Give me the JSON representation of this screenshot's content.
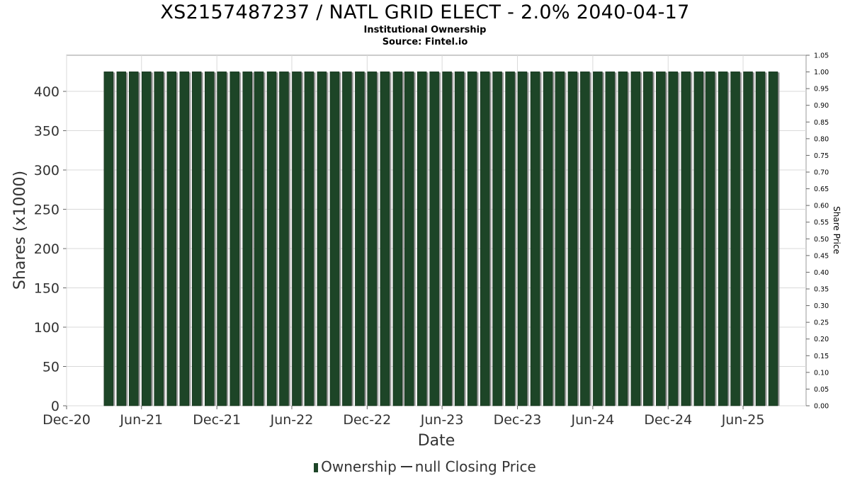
{
  "title": "XS2157487237 / NATL GRID ELECT - 2.0% 2040-04-17",
  "subtitle_1": "Institutional Ownership",
  "subtitle_2": "Source: Fintel.io",
  "legend": {
    "series_1": "Ownership",
    "series_2": "null Closing Price"
  },
  "colors": {
    "bar": "#1d4527",
    "bar_shadow": "#9a9a9a",
    "grid": "#d9d9d9",
    "axis_text": "#333333"
  },
  "chart_data": {
    "type": "bar",
    "xlabel": "Date",
    "ylabel": "Shares (x1000)",
    "y2label": "Share Price",
    "xlim": [
      "2020-12-01",
      "2025-11-01"
    ],
    "ylim": [
      0,
      446
    ],
    "y2lim": [
      0,
      1.05
    ],
    "x_ticks": [
      "Dec-20",
      "Jun-21",
      "Dec-21",
      "Jun-22",
      "Dec-22",
      "Jun-23",
      "Dec-23",
      "Jun-24",
      "Dec-24",
      "Jun-25"
    ],
    "y_ticks": [
      0,
      50,
      100,
      150,
      200,
      250,
      300,
      350,
      400
    ],
    "y2_ticks": [
      "0.00",
      "0.05",
      "0.10",
      "0.15",
      "0.20",
      "0.25",
      "0.30",
      "0.35",
      "0.40",
      "0.45",
      "0.50",
      "0.55",
      "0.60",
      "0.65",
      "0.70",
      "0.75",
      "0.80",
      "0.85",
      "0.90",
      "0.95",
      "1.00",
      "1.05"
    ],
    "grid": true,
    "legend_position": "bottom",
    "series": [
      {
        "name": "Ownership",
        "start": "2021-03",
        "end": "2025-08",
        "values": [
          425,
          425,
          425,
          425,
          425,
          425,
          425,
          425,
          425,
          425,
          425,
          425,
          425,
          425,
          425,
          425,
          425,
          425,
          425,
          425,
          425,
          425,
          425,
          425,
          425,
          425,
          425,
          425,
          425,
          425,
          425,
          425,
          425,
          425,
          425,
          425,
          425,
          425,
          425,
          425,
          425,
          425,
          425,
          425,
          425,
          425,
          425,
          425,
          425,
          425,
          425,
          425,
          425,
          425
        ]
      },
      {
        "name": "null Closing Price",
        "values": []
      }
    ]
  }
}
